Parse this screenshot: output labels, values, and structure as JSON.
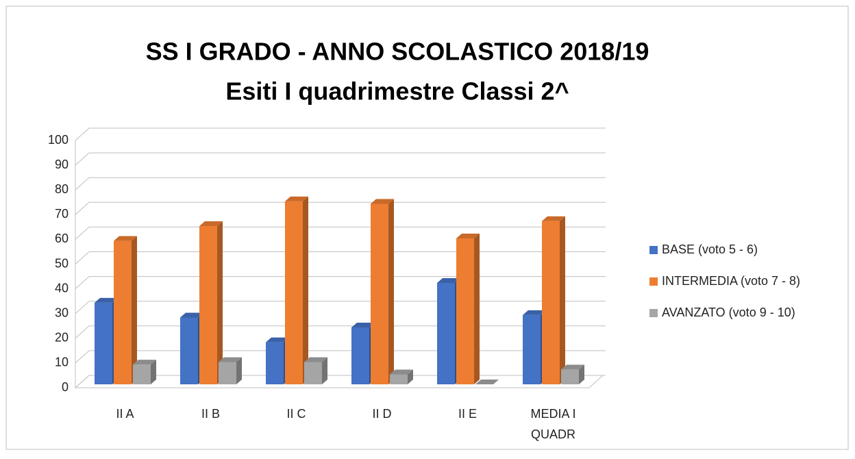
{
  "chart_data": {
    "type": "bar3d",
    "title": "SS I GRADO - ANNO SCOLASTICO 2018/19",
    "subtitle": "Esiti I quadrimestre Classi 2^",
    "categories": [
      "II A",
      "II B",
      "II C",
      "II D",
      "II E",
      "MEDIA I QUADR"
    ],
    "series": [
      {
        "name": "BASE (voto 5 - 6)",
        "color": "#4472c4",
        "values": [
          33,
          27,
          17,
          23,
          41,
          28
        ]
      },
      {
        "name": "INTERMEDIA (voto 7 - 8)",
        "color": "#ed7d31",
        "values": [
          58,
          64,
          74,
          73,
          59,
          66
        ]
      },
      {
        "name": "AVANZATO (voto 9 - 10)",
        "color": "#a5a5a5",
        "values": [
          8,
          9,
          9,
          4,
          0,
          6
        ]
      }
    ],
    "ylim": [
      0,
      100
    ],
    "yticks": [
      0,
      10,
      20,
      30,
      40,
      50,
      60,
      70,
      80,
      90,
      100
    ],
    "grid": true,
    "legend": "right"
  }
}
